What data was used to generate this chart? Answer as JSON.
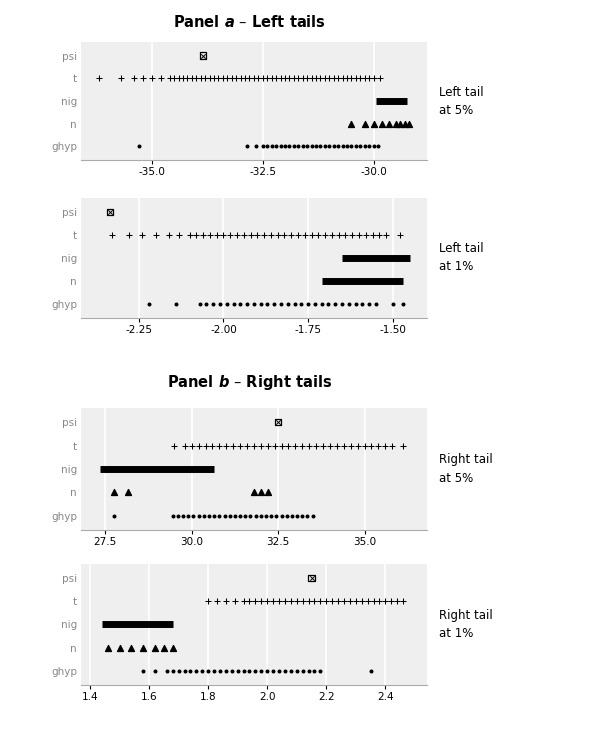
{
  "panel_a_title": "Panel $\\boldsymbol{a}$ – Left tails",
  "panel_b_title": "Panel $\\boldsymbol{b}$ – Right tails",
  "row_labels_top_to_bottom": [
    "psi",
    "t",
    "nig",
    "n",
    "ghyp"
  ],
  "label_fontsize": 7.5,
  "tick_fontsize": 7.5,
  "title_fontsize": 10.5,
  "side_label_fontsize": 8.5,
  "panels": [
    {
      "label": "Left tail\nat 5%",
      "xlim": [
        -36.6,
        -28.8
      ],
      "xticks": [
        -35.0,
        -32.5,
        -30.0
      ],
      "xticklabels": [
        "-35.0",
        "-32.5",
        "-30.0"
      ],
      "rows": {
        "psi": {
          "marker": "sq_x",
          "x": [
            -33.85
          ]
        },
        "t": {
          "marker": "+",
          "x": [
            -36.2,
            -35.7,
            -35.4,
            -35.2,
            -35.0,
            -34.8,
            -34.6,
            -34.5,
            -34.4,
            -34.3,
            -34.2,
            -34.1,
            -34.0,
            -33.9,
            -33.8,
            -33.7,
            -33.6,
            -33.5,
            -33.4,
            -33.3,
            -33.2,
            -33.1,
            -33.0,
            -32.9,
            -32.8,
            -32.7,
            -32.6,
            -32.5,
            -32.4,
            -32.3,
            -32.2,
            -32.1,
            -32.0,
            -31.9,
            -31.8,
            -31.7,
            -31.6,
            -31.5,
            -31.4,
            -31.3,
            -31.2,
            -31.1,
            -31.0,
            -30.9,
            -30.8,
            -30.7,
            -30.6,
            -30.5,
            -30.4,
            -30.3,
            -30.2,
            -30.1,
            -30.0,
            -29.85
          ]
        },
        "nig": {
          "marker": "bar",
          "x": [
            -29.95,
            -29.25
          ]
        },
        "n": {
          "marker": "^",
          "x": [
            -30.5,
            -30.2,
            -30.0,
            -29.8,
            -29.65,
            -29.5,
            -29.4,
            -29.3,
            -29.2
          ]
        },
        "ghyp": {
          "marker": "dot",
          "x": [
            -35.3,
            -32.85,
            -32.65,
            -32.5,
            -32.4,
            -32.3,
            -32.2,
            -32.1,
            -32.0,
            -31.9,
            -31.8,
            -31.7,
            -31.6,
            -31.5,
            -31.4,
            -31.3,
            -31.2,
            -31.1,
            -31.0,
            -30.9,
            -30.8,
            -30.7,
            -30.6,
            -30.5,
            -30.4,
            -30.3,
            -30.2,
            -30.1,
            -30.0,
            -29.9
          ]
        }
      }
    },
    {
      "label": "Left tail\nat 1%",
      "xlim": [
        -2.42,
        -1.4
      ],
      "xticks": [
        -2.25,
        -2.0,
        -1.75,
        -1.5
      ],
      "xticklabels": [
        "-2.25",
        "-2.00",
        "-1.75",
        "-1.50"
      ],
      "rows": {
        "psi": {
          "marker": "sq_x",
          "x": [
            -2.335
          ]
        },
        "t": {
          "marker": "+",
          "x": [
            -2.33,
            -2.28,
            -2.24,
            -2.2,
            -2.16,
            -2.13,
            -2.1,
            -2.08,
            -2.06,
            -2.04,
            -2.02,
            -2.0,
            -1.98,
            -1.96,
            -1.94,
            -1.92,
            -1.9,
            -1.88,
            -1.86,
            -1.84,
            -1.82,
            -1.8,
            -1.78,
            -1.76,
            -1.74,
            -1.72,
            -1.7,
            -1.68,
            -1.66,
            -1.64,
            -1.62,
            -1.6,
            -1.58,
            -1.56,
            -1.54,
            -1.52,
            -1.48
          ]
        },
        "nig": {
          "marker": "bar",
          "x": [
            -1.65,
            -1.45
          ]
        },
        "n": {
          "marker": "bar",
          "x": [
            -1.71,
            -1.47
          ]
        },
        "ghyp": {
          "marker": "dot",
          "x": [
            -2.22,
            -2.14,
            -2.07,
            -2.05,
            -2.03,
            -2.01,
            -1.99,
            -1.97,
            -1.95,
            -1.93,
            -1.91,
            -1.89,
            -1.87,
            -1.85,
            -1.83,
            -1.81,
            -1.79,
            -1.77,
            -1.75,
            -1.73,
            -1.71,
            -1.69,
            -1.67,
            -1.65,
            -1.63,
            -1.61,
            -1.59,
            -1.57,
            -1.55,
            -1.5,
            -1.47
          ]
        }
      }
    },
    {
      "label": "Right tail\nat 5%",
      "xlim": [
        26.8,
        36.8
      ],
      "xticks": [
        27.5,
        30.0,
        32.5,
        35.0
      ],
      "xticklabels": [
        "27.5",
        "30.0",
        "32.5",
        "35.0"
      ],
      "rows": {
        "psi": {
          "marker": "sq_x",
          "x": [
            32.5
          ]
        },
        "t": {
          "marker": "+",
          "x": [
            29.5,
            29.8,
            30.0,
            30.2,
            30.4,
            30.6,
            30.8,
            31.0,
            31.2,
            31.4,
            31.6,
            31.8,
            32.0,
            32.2,
            32.4,
            32.6,
            32.8,
            33.0,
            33.2,
            33.4,
            33.6,
            33.8,
            34.0,
            34.2,
            34.4,
            34.6,
            34.8,
            35.0,
            35.2,
            35.4,
            35.6,
            35.8,
            36.1
          ]
        },
        "nig": {
          "marker": "bar",
          "x": [
            27.35,
            30.65
          ]
        },
        "n": {
          "marker": "^",
          "x": [
            27.75,
            28.15,
            31.8,
            32.0,
            32.2
          ]
        },
        "ghyp": {
          "marker": "dot",
          "x": [
            27.75,
            29.45,
            29.6,
            29.75,
            29.9,
            30.05,
            30.2,
            30.35,
            30.5,
            30.65,
            30.8,
            30.95,
            31.1,
            31.25,
            31.4,
            31.55,
            31.7,
            31.85,
            32.0,
            32.15,
            32.3,
            32.45,
            32.6,
            32.75,
            32.9,
            33.05,
            33.2,
            33.35,
            33.5
          ]
        }
      }
    },
    {
      "label": "Right tail\nat 1%",
      "xlim": [
        1.37,
        2.54
      ],
      "xticks": [
        1.4,
        1.6,
        1.8,
        2.0,
        2.2,
        2.4
      ],
      "xticklabels": [
        "1.4",
        "1.6",
        "1.8",
        "2.0",
        "2.2",
        "2.4"
      ],
      "rows": {
        "psi": {
          "marker": "sq_x",
          "x": [
            2.15
          ]
        },
        "t": {
          "marker": "+",
          "x": [
            1.8,
            1.83,
            1.86,
            1.89,
            1.92,
            1.94,
            1.96,
            1.98,
            2.0,
            2.02,
            2.04,
            2.06,
            2.08,
            2.1,
            2.12,
            2.14,
            2.16,
            2.18,
            2.2,
            2.22,
            2.24,
            2.26,
            2.28,
            2.3,
            2.32,
            2.34,
            2.36,
            2.38,
            2.4,
            2.42,
            2.44,
            2.46
          ]
        },
        "nig": {
          "marker": "bar",
          "x": [
            1.44,
            1.68
          ]
        },
        "n": {
          "marker": "^",
          "x": [
            1.46,
            1.5,
            1.54,
            1.58,
            1.62,
            1.65,
            1.68
          ]
        },
        "ghyp": {
          "marker": "dot",
          "x": [
            1.58,
            1.62,
            1.66,
            1.68,
            1.7,
            1.72,
            1.74,
            1.76,
            1.78,
            1.8,
            1.82,
            1.84,
            1.86,
            1.88,
            1.9,
            1.92,
            1.94,
            1.96,
            1.98,
            2.0,
            2.02,
            2.04,
            2.06,
            2.08,
            2.1,
            2.12,
            2.14,
            2.16,
            2.18,
            2.35
          ]
        }
      }
    }
  ]
}
